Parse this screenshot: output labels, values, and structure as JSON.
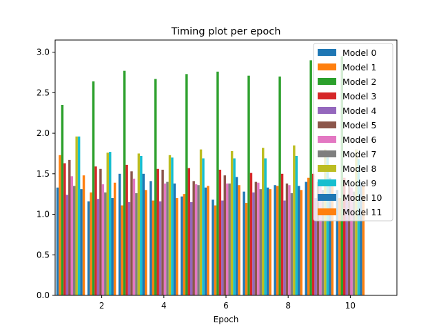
{
  "chart_data": {
    "type": "bar",
    "title": "Timing plot per epoch",
    "xlabel": "Epoch",
    "ylabel": "",
    "xlim": [
      0.5,
      11.5
    ],
    "ylim": [
      0,
      3.15
    ],
    "x": [
      1,
      2,
      3,
      4,
      5,
      6,
      7,
      8,
      9,
      10
    ],
    "xticks": [
      "2",
      "4",
      "6",
      "8",
      "10"
    ],
    "xtick_values": [
      2,
      4,
      6,
      8,
      10
    ],
    "yticks": [
      "0.0",
      "0.5",
      "1.0",
      "1.5",
      "2.0",
      "2.5",
      "3.0"
    ],
    "ytick_values": [
      0,
      0.5,
      1.0,
      1.5,
      2.0,
      2.5,
      3.0
    ],
    "grid": false,
    "legend_position": "top-right",
    "series": [
      {
        "name": "Model 0",
        "color": "#1f77b4",
        "values": [
          1.33,
          1.16,
          1.5,
          1.41,
          1.22,
          1.18,
          1.28,
          1.36,
          1.4,
          1.3
        ]
      },
      {
        "name": "Model 1",
        "color": "#ff7f0e",
        "values": [
          1.73,
          1.27,
          1.11,
          1.17,
          1.25,
          1.11,
          1.14,
          1.35,
          1.45,
          1.2
        ]
      },
      {
        "name": "Model 2",
        "color": "#2ca02c",
        "values": [
          2.35,
          2.64,
          2.77,
          2.67,
          2.73,
          2.76,
          2.71,
          2.7,
          2.9,
          2.95
        ]
      },
      {
        "name": "Model 3",
        "color": "#d62728",
        "values": [
          1.63,
          1.59,
          1.61,
          1.56,
          1.57,
          1.55,
          1.51,
          1.5,
          1.5,
          1.45
        ]
      },
      {
        "name": "Model 4",
        "color": "#9467bd",
        "values": [
          1.24,
          1.19,
          1.15,
          1.16,
          1.15,
          1.17,
          1.27,
          1.17,
          1.2,
          1.18
        ]
      },
      {
        "name": "Model 5",
        "color": "#8c564b",
        "values": [
          1.67,
          1.56,
          1.53,
          1.55,
          1.41,
          1.48,
          1.4,
          1.38,
          1.4,
          1.36
        ]
      },
      {
        "name": "Model 6",
        "color": "#e377c2",
        "values": [
          1.47,
          1.37,
          1.44,
          1.38,
          1.37,
          1.38,
          1.39,
          1.36,
          1.35,
          1.33
        ]
      },
      {
        "name": "Model 7",
        "color": "#7f7f7f",
        "values": [
          1.35,
          1.27,
          1.26,
          1.4,
          1.36,
          1.38,
          1.31,
          1.26,
          1.3,
          1.28
        ]
      },
      {
        "name": "Model 8",
        "color": "#bcbd22",
        "values": [
          1.96,
          1.76,
          1.75,
          1.73,
          1.8,
          1.78,
          1.82,
          1.85,
          1.8,
          1.8
        ]
      },
      {
        "name": "Model 9",
        "color": "#17becf",
        "values": [
          1.96,
          1.77,
          1.72,
          1.7,
          1.69,
          1.69,
          1.69,
          1.72,
          1.7,
          1.68
        ]
      },
      {
        "name": "Model 10",
        "color": "#1f77b4",
        "values": [
          1.31,
          1.2,
          1.5,
          1.38,
          1.33,
          1.46,
          1.33,
          1.35,
          1.45,
          1.4
        ]
      },
      {
        "name": "Model 11",
        "color": "#ff7f0e",
        "values": [
          1.48,
          1.39,
          1.3,
          1.2,
          1.35,
          1.36,
          1.31,
          1.3,
          1.4,
          1.35
        ]
      }
    ]
  }
}
